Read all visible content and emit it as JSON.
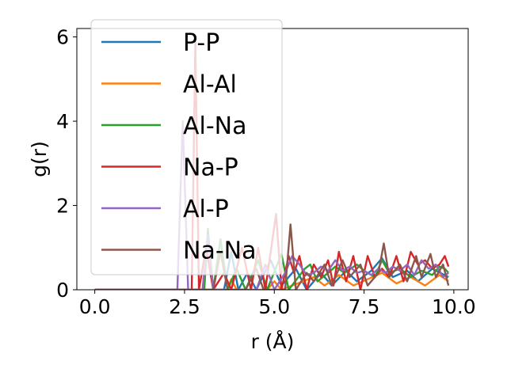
{
  "chart_data": {
    "type": "line",
    "title": "",
    "xlabel": "r (Å)",
    "ylabel": "g(r)",
    "xlim": [
      -0.5,
      10.4
    ],
    "ylim": [
      0,
      6.2
    ],
    "x_ticks": [
      0.0,
      2.5,
      5.0,
      7.5,
      10.0
    ],
    "x_tick_labels": [
      "0.0",
      "2.5",
      "5.0",
      "7.5",
      "10.0"
    ],
    "y_ticks": [
      0,
      2,
      4,
      6
    ],
    "y_tick_labels": [
      "0",
      "2",
      "4",
      "6"
    ],
    "grid": false,
    "legend_position": "upper-left",
    "series": [
      {
        "name": "P-P",
        "color": "#1f77b4",
        "points": [
          [
            0,
            0
          ],
          [
            2.2,
            0
          ],
          [
            3.6,
            0
          ],
          [
            3.8,
            0.9
          ],
          [
            4.0,
            0
          ],
          [
            4.25,
            0.4
          ],
          [
            4.5,
            0
          ],
          [
            4.9,
            0.7
          ],
          [
            5.2,
            0.1
          ],
          [
            5.6,
            0.5
          ],
          [
            5.9,
            0
          ],
          [
            6.3,
            0.4
          ],
          [
            6.6,
            0.1
          ],
          [
            7.0,
            0.45
          ],
          [
            7.3,
            0.2
          ],
          [
            7.7,
            0.45
          ],
          [
            8.0,
            0.75
          ],
          [
            8.3,
            0.3
          ],
          [
            8.7,
            0.45
          ],
          [
            9.0,
            0.2
          ],
          [
            9.4,
            0.5
          ],
          [
            9.85,
            0.3
          ]
        ]
      },
      {
        "name": "Al-Al",
        "color": "#ff7f0e",
        "points": [
          [
            0,
            0
          ],
          [
            2.2,
            0
          ],
          [
            3.7,
            0
          ],
          [
            3.8,
            0.25
          ],
          [
            3.95,
            0
          ],
          [
            4.3,
            0
          ],
          [
            4.8,
            0
          ],
          [
            5.0,
            0.2
          ],
          [
            5.2,
            0
          ],
          [
            6.1,
            0.3
          ],
          [
            6.4,
            0.1
          ],
          [
            6.8,
            0.35
          ],
          [
            7.2,
            0.1
          ],
          [
            7.6,
            0.25
          ],
          [
            8.0,
            0.4
          ],
          [
            8.4,
            0.15
          ],
          [
            8.8,
            0.3
          ],
          [
            9.2,
            0.1
          ],
          [
            9.6,
            0.35
          ],
          [
            9.85,
            0.2
          ]
        ]
      },
      {
        "name": "Al-Na",
        "color": "#2ca02c",
        "points": [
          [
            0,
            0
          ],
          [
            2.2,
            0
          ],
          [
            3.05,
            0
          ],
          [
            3.15,
            1.45
          ],
          [
            3.3,
            0
          ],
          [
            3.5,
            1.2
          ],
          [
            3.7,
            0
          ],
          [
            3.95,
            0.5
          ],
          [
            4.2,
            0
          ],
          [
            4.55,
            0.7
          ],
          [
            4.8,
            0
          ],
          [
            5.2,
            0.85
          ],
          [
            5.4,
            0
          ],
          [
            5.85,
            0.5
          ],
          [
            6.0,
            0.6
          ],
          [
            6.2,
            0.2
          ],
          [
            6.5,
            0.4
          ],
          [
            6.7,
            0.55
          ],
          [
            6.95,
            0.4
          ],
          [
            7.3,
            0.6
          ],
          [
            7.5,
            0.45
          ],
          [
            7.8,
            0.3
          ],
          [
            8.0,
            0.7
          ],
          [
            8.2,
            0.4
          ],
          [
            8.5,
            0.5
          ],
          [
            8.8,
            0.3
          ],
          [
            9.1,
            0.45
          ],
          [
            9.4,
            0.35
          ],
          [
            9.6,
            0.55
          ],
          [
            9.75,
            0.5
          ],
          [
            9.85,
            0.4
          ]
        ]
      },
      {
        "name": "Na-P",
        "color": "#d62728",
        "points": [
          [
            0,
            0
          ],
          [
            2.2,
            0
          ],
          [
            2.7,
            0
          ],
          [
            2.8,
            5.9
          ],
          [
            2.9,
            0
          ],
          [
            3.1,
            1.0
          ],
          [
            3.3,
            0
          ],
          [
            3.6,
            0.4
          ],
          [
            3.8,
            0
          ],
          [
            4.1,
            1.0
          ],
          [
            4.35,
            0
          ],
          [
            4.55,
            1.0
          ],
          [
            4.75,
            0
          ],
          [
            5.05,
            1.8
          ],
          [
            5.2,
            0
          ],
          [
            5.4,
            0.8
          ],
          [
            5.55,
            0.4
          ],
          [
            5.7,
            0.8
          ],
          [
            5.9,
            0
          ],
          [
            6.1,
            0.6
          ],
          [
            6.3,
            0.3
          ],
          [
            6.5,
            0.7
          ],
          [
            6.65,
            0.1
          ],
          [
            6.8,
            0.9
          ],
          [
            7.0,
            0.2
          ],
          [
            7.2,
            0.8
          ],
          [
            7.4,
            0
          ],
          [
            7.6,
            0.8
          ],
          [
            7.8,
            0.3
          ],
          [
            8.0,
            0.5
          ],
          [
            8.2,
            0.3
          ],
          [
            8.4,
            0.8
          ],
          [
            8.6,
            0.2
          ],
          [
            8.8,
            0.9
          ],
          [
            9.0,
            0.6
          ],
          [
            9.2,
            0.7
          ],
          [
            9.4,
            0.5
          ],
          [
            9.6,
            0.6
          ],
          [
            9.75,
            0.8
          ],
          [
            9.85,
            0.55
          ]
        ]
      },
      {
        "name": "Al-P",
        "color": "#9467bd",
        "points": [
          [
            0,
            0
          ],
          [
            2.2,
            0
          ],
          [
            2.3,
            0
          ],
          [
            2.45,
            4.0
          ],
          [
            2.6,
            0
          ],
          [
            3.0,
            0
          ],
          [
            3.15,
            1.3
          ],
          [
            3.3,
            0
          ],
          [
            4.5,
            0
          ],
          [
            4.75,
            0.6
          ],
          [
            5.0,
            0
          ],
          [
            5.3,
            0.4
          ],
          [
            5.5,
            0.8
          ],
          [
            5.7,
            0.6
          ],
          [
            5.9,
            0.35
          ],
          [
            6.1,
            0.4
          ],
          [
            6.3,
            0.55
          ],
          [
            6.5,
            0.45
          ],
          [
            6.7,
            0.7
          ],
          [
            6.9,
            0.45
          ],
          [
            7.1,
            0.55
          ],
          [
            7.3,
            0.4
          ],
          [
            7.5,
            0.45
          ],
          [
            7.7,
            0.35
          ],
          [
            7.9,
            0.5
          ],
          [
            8.1,
            0.4
          ],
          [
            8.3,
            0.55
          ],
          [
            8.5,
            0.45
          ],
          [
            8.7,
            0.6
          ],
          [
            8.9,
            0.35
          ],
          [
            9.1,
            0.7
          ],
          [
            9.3,
            0.5
          ],
          [
            9.5,
            0.6
          ],
          [
            9.7,
            0.3
          ],
          [
            9.85,
            0.4
          ]
        ]
      },
      {
        "name": "Na-Na",
        "color": "#8c564b",
        "points": [
          [
            0,
            0
          ],
          [
            2.2,
            0
          ],
          [
            3.3,
            0
          ],
          [
            3.5,
            0.9
          ],
          [
            3.7,
            0
          ],
          [
            4.2,
            0
          ],
          [
            4.5,
            0.5
          ],
          [
            4.7,
            0
          ],
          [
            5.3,
            0
          ],
          [
            5.45,
            1.55
          ],
          [
            5.6,
            0
          ],
          [
            5.9,
            0.4
          ],
          [
            6.1,
            0.2
          ],
          [
            6.4,
            0.6
          ],
          [
            6.6,
            0.1
          ],
          [
            6.9,
            0.7
          ],
          [
            7.1,
            0.3
          ],
          [
            7.4,
            0.6
          ],
          [
            7.6,
            0.1
          ],
          [
            7.9,
            0.4
          ],
          [
            8.05,
            1.1
          ],
          [
            8.2,
            0.3
          ],
          [
            8.5,
            0.6
          ],
          [
            8.7,
            0.2
          ],
          [
            8.95,
            0.8
          ],
          [
            9.1,
            0.3
          ],
          [
            9.35,
            0.85
          ],
          [
            9.5,
            0.3
          ],
          [
            9.7,
            0.6
          ],
          [
            9.85,
            0.1
          ]
        ]
      }
    ]
  }
}
